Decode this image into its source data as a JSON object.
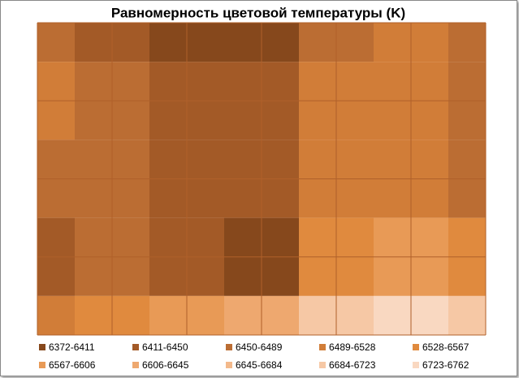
{
  "chart_data": {
    "type": "contour",
    "title": "Равномерность цветовой температуры (K)",
    "z": [
      [
        6460,
        6440,
        6400,
        6395,
        6480,
        6490,
        6470
      ],
      [
        6490,
        6460,
        6420,
        6430,
        6500,
        6490,
        6480
      ],
      [
        6470,
        6450,
        6430,
        6440,
        6500,
        6520,
        6480
      ],
      [
        6440,
        6450,
        6420,
        6400,
        6560,
        6570,
        6540
      ],
      [
        6500,
        6550,
        6600,
        6640,
        6700,
        6750,
        6700
      ]
    ],
    "levels": [
      6372,
      6411,
      6450,
      6489,
      6528,
      6567,
      6606,
      6645,
      6684,
      6723,
      6762
    ],
    "legend": [
      {
        "name": "6372-6411",
        "color": "#86481c"
      },
      {
        "name": "6411-6450",
        "color": "#a35a27"
      },
      {
        "name": "6450-6489",
        "color": "#bb6d33"
      },
      {
        "name": "6489-6528",
        "color": "#d17d38"
      },
      {
        "name": "6528-6567",
        "color": "#e08a3e"
      },
      {
        "name": "6567-6606",
        "color": "#e89a56"
      },
      {
        "name": "6606-6645",
        "color": "#eea86f"
      },
      {
        "name": "6645-6684",
        "color": "#f3b98b"
      },
      {
        "name": "6684-6723",
        "color": "#f6c8a5"
      },
      {
        "name": "6723-6762",
        "color": "#f9d8c1"
      }
    ]
  }
}
